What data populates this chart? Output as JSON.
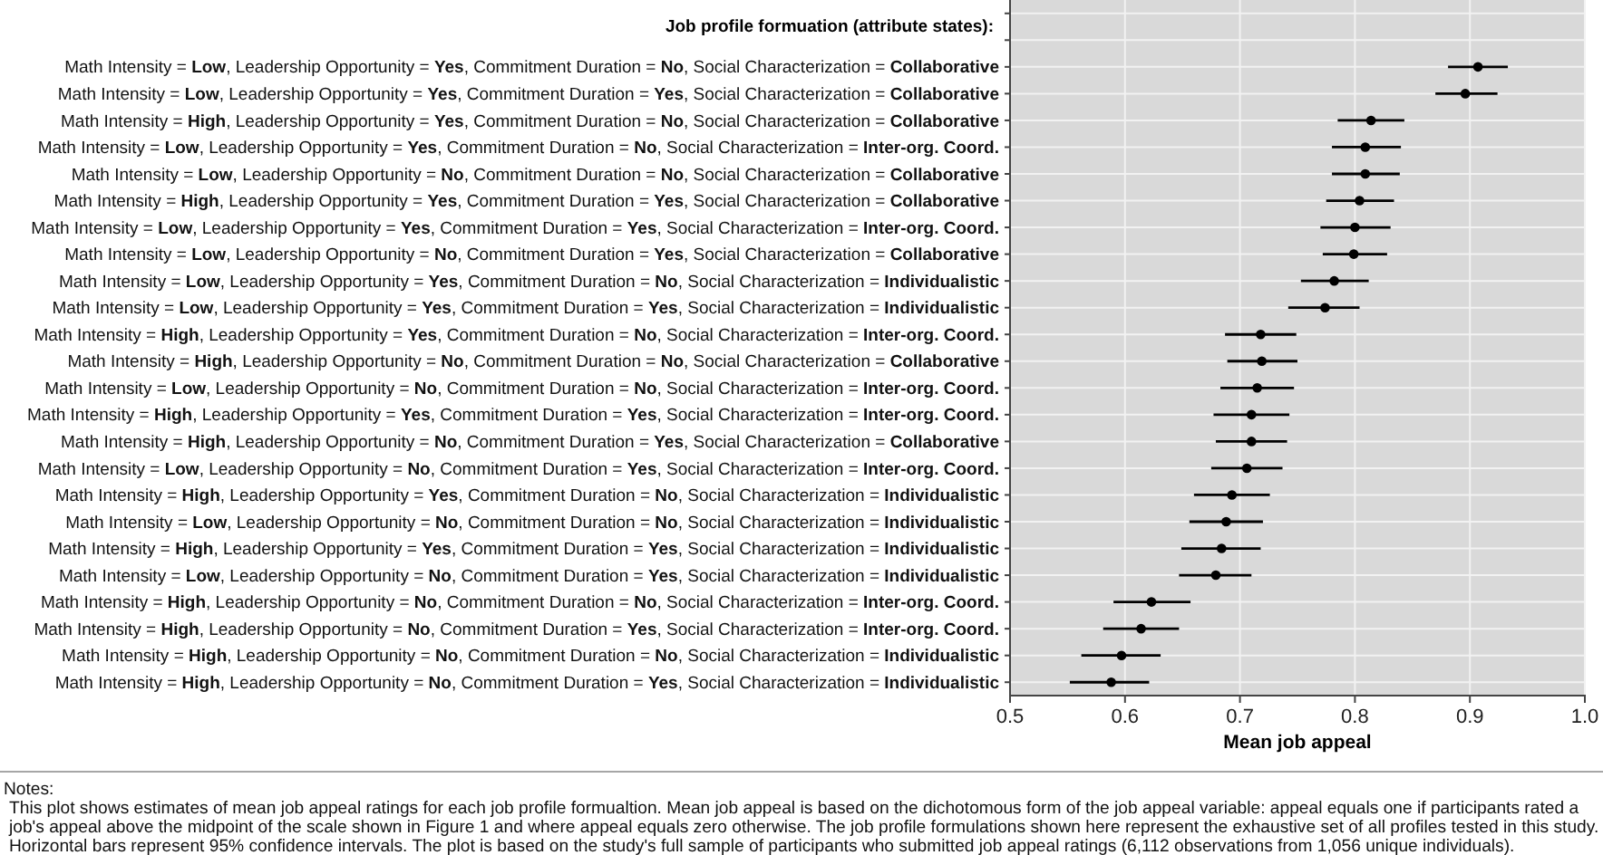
{
  "chart_data": {
    "type": "scatter",
    "ylabel": "Job profile formuation (attribute states):",
    "xlabel": "Mean job appeal",
    "categories": [
      null,
      null,
      "Math Intensity = Low, Leadership Opportunity = Yes, Commitment Duration = No, Social Characterization = Collaborative",
      "Math Intensity = Low, Leadership Opportunity = Yes, Commitment Duration = Yes, Social Characterization = Collaborative",
      "Math Intensity = High, Leadership Opportunity = Yes, Commitment Duration = No, Social Characterization = Collaborative",
      "Math Intensity = Low, Leadership Opportunity = Yes, Commitment Duration = No, Social Characterization = Inter-org. Coord.",
      "Math Intensity = Low, Leadership Opportunity = No, Commitment Duration = No, Social Characterization = Collaborative",
      "Math Intensity = High, Leadership Opportunity = Yes, Commitment Duration = Yes, Social Characterization = Collaborative",
      "Math Intensity = Low, Leadership Opportunity = Yes, Commitment Duration = Yes, Social Characterization = Inter-org. Coord.",
      "Math Intensity = Low, Leadership Opportunity = No, Commitment Duration = Yes, Social Characterization = Collaborative",
      "Math Intensity = Low, Leadership Opportunity = Yes, Commitment Duration = No, Social Characterization = Individualistic",
      "Math Intensity = Low, Leadership Opportunity = Yes, Commitment Duration = Yes, Social Characterization = Individualistic",
      "Math Intensity = High, Leadership Opportunity = Yes, Commitment Duration = No, Social Characterization = Inter-org. Coord.",
      "Math Intensity = High, Leadership Opportunity = No, Commitment Duration = No, Social Characterization = Collaborative",
      "Math Intensity = Low, Leadership Opportunity = No, Commitment Duration = No, Social Characterization = Inter-org. Coord.",
      "Math Intensity = High, Leadership Opportunity = Yes, Commitment Duration = Yes, Social Characterization = Inter-org. Coord.",
      "Math Intensity = High, Leadership Opportunity = No, Commitment Duration = Yes, Social Characterization = Collaborative",
      "Math Intensity = Low, Leadership Opportunity = No, Commitment Duration = Yes, Social Characterization = Inter-org. Coord.",
      "Math Intensity = High, Leadership Opportunity = Yes, Commitment Duration = No, Social Characterization = Individualistic",
      "Math Intensity = Low, Leadership Opportunity = No, Commitment Duration = No, Social Characterization = Individualistic",
      "Math Intensity = High, Leadership Opportunity = Yes, Commitment Duration = Yes, Social Characterization = Individualistic",
      "Math Intensity = Low, Leadership Opportunity = No, Commitment Duration = Yes, Social Characterization = Individualistic",
      "Math Intensity = High, Leadership Opportunity = No, Commitment Duration = No, Social Characterization = Inter-org. Coord.",
      "Math Intensity = High, Leadership Opportunity = No, Commitment Duration = Yes, Social Characterization = Inter-org. Coord.",
      "Math Intensity = High, Leadership Opportunity = No, Commitment Duration = No, Social Characterization = Individualistic",
      "Math Intensity = High, Leadership Opportunity = No, Commitment Duration = Yes, Social Characterization = Individualistic"
    ],
    "orientation": "horizontal",
    "values": [
      null,
      null,
      0.907,
      0.896,
      0.814,
      0.809,
      0.809,
      0.804,
      0.8,
      0.799,
      0.782,
      0.774,
      0.718,
      0.719,
      0.715,
      0.71,
      0.71,
      0.706,
      0.693,
      0.688,
      0.684,
      0.679,
      0.623,
      0.614,
      0.597,
      0.588
    ],
    "errors": [
      null,
      null,
      [
        0.881,
        0.933
      ],
      [
        0.87,
        0.924
      ],
      [
        0.785,
        0.843
      ],
      [
        0.78,
        0.84
      ],
      [
        0.78,
        0.839
      ],
      [
        0.775,
        0.834
      ],
      [
        0.77,
        0.831
      ],
      [
        0.772,
        0.828
      ],
      [
        0.753,
        0.812
      ],
      [
        0.742,
        0.804
      ],
      [
        0.687,
        0.749
      ],
      [
        0.689,
        0.75
      ],
      [
        0.683,
        0.747
      ],
      [
        0.677,
        0.743
      ],
      [
        0.679,
        0.741
      ],
      [
        0.675,
        0.737
      ],
      [
        0.66,
        0.726
      ],
      [
        0.656,
        0.72
      ],
      [
        0.649,
        0.718
      ],
      [
        0.647,
        0.71
      ],
      [
        0.59,
        0.657
      ],
      [
        0.581,
        0.647
      ],
      [
        0.562,
        0.631
      ],
      [
        0.552,
        0.621
      ]
    ],
    "color": "#000000",
    "marker": "circle",
    "xlim": [
      0.5,
      1.0
    ],
    "xticks": [
      {
        "value": 0.5,
        "label": "0.5"
      },
      {
        "value": 0.6,
        "label": "0.6"
      },
      {
        "value": 0.7,
        "label": "0.7"
      },
      {
        "value": 0.8,
        "label": "0.8"
      },
      {
        "value": 0.9,
        "label": "0.9"
      },
      {
        "value": 1.0,
        "label": "1.0"
      }
    ],
    "grid": true,
    "annotations": [
      "Notes:",
      "This plot shows estimates of mean job appeal ratings for each job profile formualtion. Mean job appeal is based on the dichotomous form of the job appeal variable: appeal equals one if participants rated a",
      "job's appeal above the midpoint of the scale shown in Figure 1 and where appeal equals zero otherwise. The job profile formulations shown here represent the exhaustive set of all profiles tested in this study.",
      "Horizontal bars represent 95% confidence intervals. The plot is based on the study's full sample of participants who submitted job appeal ratings (6,112 observations from 1,056 unique individuals)."
    ]
  }
}
